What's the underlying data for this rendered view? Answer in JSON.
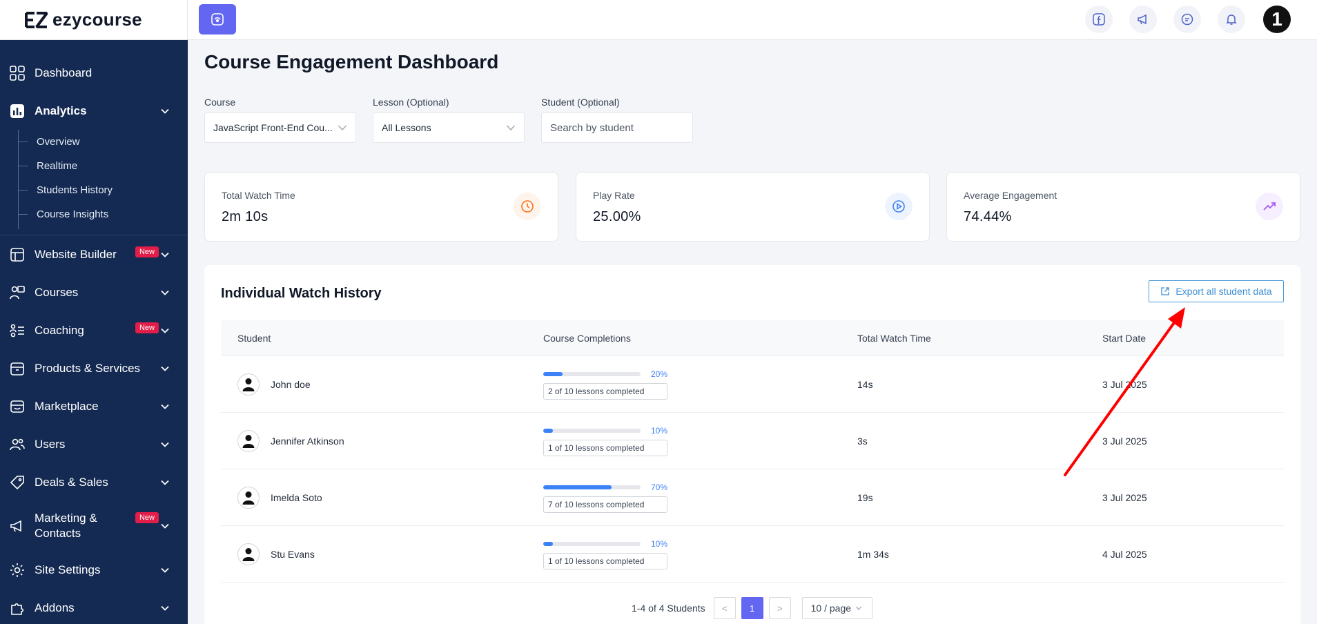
{
  "app": {
    "logo_text": "ezycourse",
    "brand_color": "#6366f1",
    "sidebar_color": "#142a52"
  },
  "sidebar": {
    "items": [
      {
        "label": "Dashboard",
        "icon": "grid-icon"
      },
      {
        "label": "Analytics",
        "icon": "bar-chart-icon",
        "expanded": true
      },
      {
        "label": "Website Builder",
        "icon": "layout-icon",
        "badge": "New"
      },
      {
        "label": "Courses",
        "icon": "teacher-icon"
      },
      {
        "label": "Coaching",
        "icon": "coaching-icon",
        "badge": "New"
      },
      {
        "label": "Products & Services",
        "icon": "box-icon"
      },
      {
        "label": "Marketplace",
        "icon": "store-icon"
      },
      {
        "label": "Users",
        "icon": "users-icon"
      },
      {
        "label": "Deals & Sales",
        "icon": "tag-icon"
      },
      {
        "label": "Marketing & Contacts",
        "icon": "megaphone-icon",
        "badge": "New"
      },
      {
        "label": "Site Settings",
        "icon": "gear-icon"
      },
      {
        "label": "Addons",
        "icon": "puzzle-icon"
      }
    ],
    "analytics_sub": [
      "Overview",
      "Realtime",
      "Students History",
      "Course Insights"
    ]
  },
  "topbar": {
    "icons": [
      "facebook-icon",
      "megaphone-icon",
      "chat-icon",
      "bell-icon"
    ],
    "avatar_text": "1"
  },
  "page": {
    "title": "Course Engagement Dashboard"
  },
  "filters": {
    "course_label": "Course",
    "course_value": "JavaScript Front-End Cou...",
    "lesson_label": "Lesson (Optional)",
    "lesson_value": "All Lessons",
    "student_label": "Student (Optional)",
    "student_placeholder": "Search by student"
  },
  "stats": [
    {
      "label": "Total Watch Time",
      "value": "2m 10s",
      "icon": "clock-icon",
      "color": "#f97316",
      "bg": "#fff4ec"
    },
    {
      "label": "Play Rate",
      "value": "25.00%",
      "icon": "play-icon",
      "color": "#3b82f6",
      "bg": "#eef4ff"
    },
    {
      "label": "Average Engagement",
      "value": "74.44%",
      "icon": "trend-up-icon",
      "color": "#a855f7",
      "bg": "#f5efff"
    }
  ],
  "history": {
    "title": "Individual Watch History",
    "export_label": "Export all student data",
    "columns": [
      "Student",
      "Course Completions",
      "Total Watch Time",
      "Start Date"
    ],
    "rows": [
      {
        "name": "John doe",
        "percent": 20,
        "percent_label": "20%",
        "caption": "2 of 10 lessons completed",
        "watch_time": "14s",
        "start_date": "3 Jul 2025"
      },
      {
        "name": "Jennifer Atkinson",
        "percent": 10,
        "percent_label": "10%",
        "caption": "1 of 10 lessons completed",
        "watch_time": "3s",
        "start_date": "3 Jul 2025"
      },
      {
        "name": "Imelda Soto",
        "percent": 70,
        "percent_label": "70%",
        "caption": "7 of 10 lessons completed",
        "watch_time": "19s",
        "start_date": "3 Jul 2025"
      },
      {
        "name": "Stu Evans",
        "percent": 10,
        "percent_label": "10%",
        "caption": "1 of 10 lessons completed",
        "watch_time": "1m 34s",
        "start_date": "4 Jul 2025"
      }
    ],
    "pagination": {
      "summary": "1-4 of 4 Students",
      "prev": "<",
      "current_page": "1",
      "next": ">",
      "page_size": "10 / page"
    }
  },
  "annotation": {
    "color": "#ff0000"
  }
}
